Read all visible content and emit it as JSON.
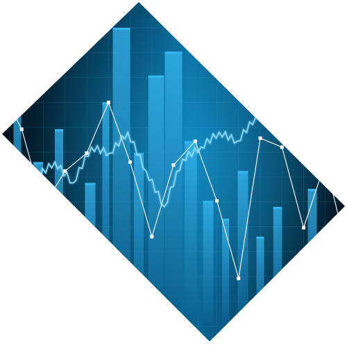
{
  "artwork": {
    "subject": "abstract-financial-chart-graphic",
    "shape": "rotated-square-diamond",
    "colors": {
      "page_background": "#ffffff",
      "panel_dark": "#02121c",
      "panel_mid": "#064d72",
      "panel_glow": "#1aa6e6",
      "bar_light": "#38b8f2",
      "bar_dark": "#0b5c8a",
      "line_white": "#ffffff",
      "line_glow": "#8fe0ff",
      "grid": "#4fb4e0"
    },
    "bars": [
      {
        "position": 0.05,
        "value": 0.82,
        "width": 0.022
      },
      {
        "position": 0.11,
        "value": 0.55,
        "width": 0.028
      },
      {
        "position": 0.17,
        "value": 0.66,
        "width": 0.024
      },
      {
        "position": 0.21,
        "value": 0.35,
        "width": 0.018
      },
      {
        "position": 0.26,
        "value": 0.48,
        "width": 0.03
      },
      {
        "position": 0.305,
        "value": 0.75,
        "width": 0.02
      },
      {
        "position": 0.35,
        "value": 1.0,
        "width": 0.05
      },
      {
        "position": 0.4,
        "value": 0.58,
        "width": 0.028
      },
      {
        "position": 0.45,
        "value": 0.84,
        "width": 0.045
      },
      {
        "position": 0.5,
        "value": 0.92,
        "width": 0.05
      },
      {
        "position": 0.55,
        "value": 0.62,
        "width": 0.035
      },
      {
        "position": 0.6,
        "value": 0.42,
        "width": 0.03
      },
      {
        "position": 0.65,
        "value": 0.36,
        "width": 0.02
      },
      {
        "position": 0.7,
        "value": 0.52,
        "width": 0.03
      },
      {
        "position": 0.75,
        "value": 0.3,
        "width": 0.022
      },
      {
        "position": 0.8,
        "value": 0.4,
        "width": 0.025
      },
      {
        "position": 0.85,
        "value": 0.22,
        "width": 0.02
      },
      {
        "position": 0.9,
        "value": 0.46,
        "width": 0.026
      },
      {
        "position": 0.95,
        "value": 0.18,
        "width": 0.02
      }
    ],
    "white_line_points": [
      0.8,
      0.66,
      0.4,
      0.52,
      0.58,
      0.75,
      0.55,
      0.3,
      0.54,
      0.62,
      0.42,
      0.16,
      0.63,
      0.6,
      0.33,
      0.55,
      0.25
    ],
    "glow_line_points": [
      0.45,
      0.42,
      0.5,
      0.55,
      0.48,
      0.6,
      0.58,
      0.65,
      0.52,
      0.4,
      0.56,
      0.6,
      0.65,
      0.62,
      0.7,
      0.72,
      0.66,
      0.68,
      0.74,
      0.7
    ]
  }
}
